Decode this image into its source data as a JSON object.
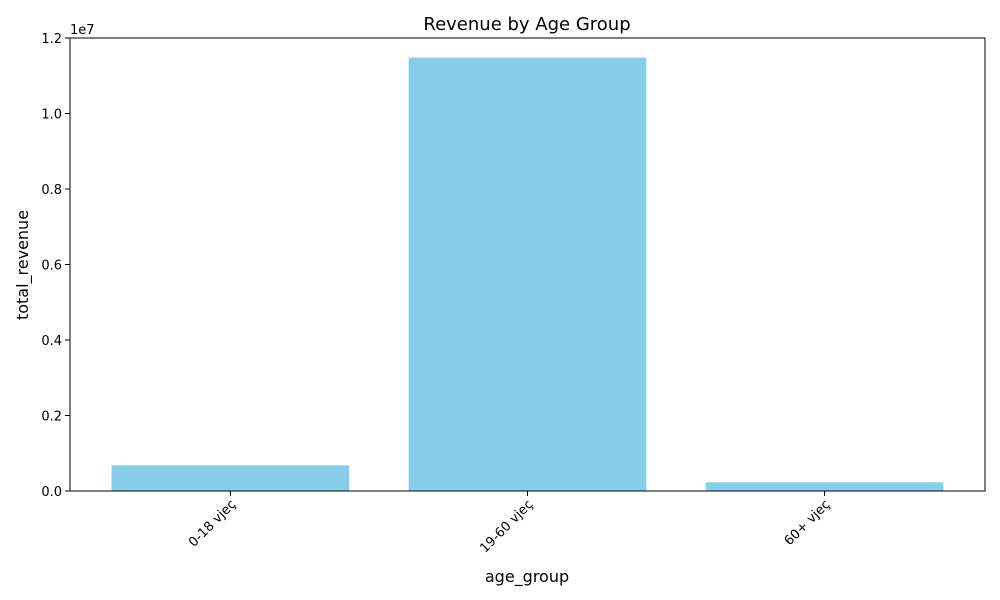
{
  "chart_data": {
    "type": "bar",
    "title": "Revenue by Age Group",
    "xlabel": "age_group",
    "ylabel": "total_revenue",
    "categories": [
      "0-18 vjeç",
      "19-60 vjeç",
      "60+ vjeç"
    ],
    "values": [
      680000,
      11480000,
      230000
    ],
    "ylim": [
      0,
      12000000
    ],
    "y_offset_label": "1e7",
    "yticks": [
      0,
      2000000,
      4000000,
      6000000,
      8000000,
      10000000,
      12000000
    ],
    "ytick_labels": [
      "0.0",
      "0.2",
      "0.4",
      "0.6",
      "0.8",
      "1.0",
      "1.2"
    ],
    "xtick_rotation_deg": 45,
    "grid": false,
    "legend": "none",
    "bar_color": "#87CEEB"
  }
}
